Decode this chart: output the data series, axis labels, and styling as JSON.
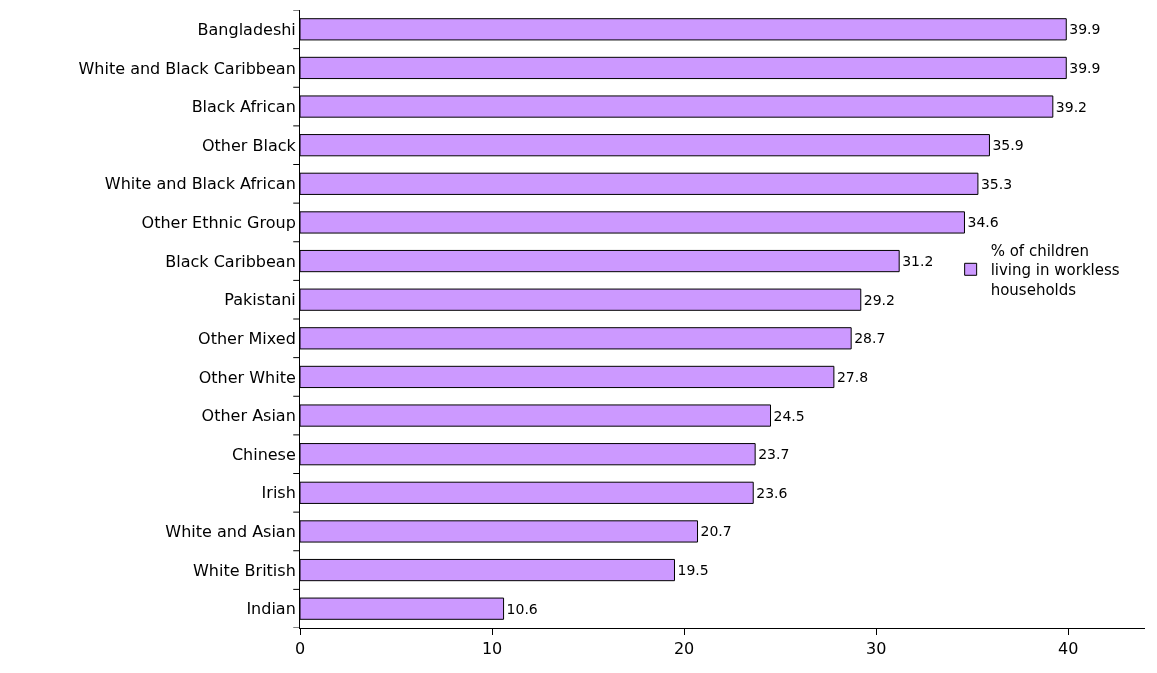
{
  "chart_data": {
    "type": "bar",
    "orientation": "horizontal",
    "categories": [
      "Bangladeshi",
      "White and Black Caribbean",
      "Black African",
      "Other Black",
      "White and Black African",
      "Other Ethnic Group",
      "Black Caribbean",
      "Pakistani",
      "Other Mixed",
      "Other White",
      "Other Asian",
      "Chinese",
      "Irish",
      "White and Asian",
      "White British",
      "Indian"
    ],
    "series": [
      {
        "name": "% of children living in workless households",
        "color": "#cc99ff",
        "values": [
          39.9,
          39.9,
          39.2,
          35.9,
          35.3,
          34.6,
          31.2,
          29.2,
          28.7,
          27.8,
          24.5,
          23.7,
          23.6,
          20.7,
          19.5,
          10.6
        ]
      }
    ],
    "xlim": [
      0,
      44
    ],
    "xticks": [
      0,
      10,
      20,
      30,
      40
    ],
    "grid": false,
    "legend": "right",
    "data_labels": true
  }
}
